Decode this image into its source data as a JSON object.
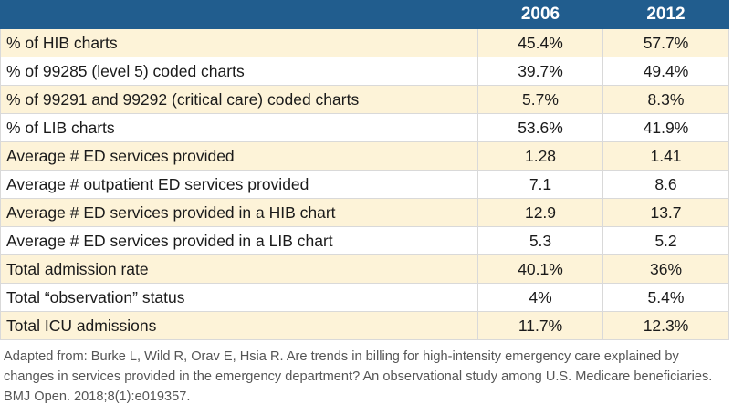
{
  "table": {
    "columns": [
      "",
      "2006",
      "2012"
    ],
    "rows": [
      {
        "label": "% of HIB charts",
        "v2006": "45.4%",
        "v2012": "57.7%"
      },
      {
        "label": "% of 99285 (level 5) coded charts",
        "v2006": "39.7%",
        "v2012": "49.4%"
      },
      {
        "label": "% of 99291 and 99292 (critical care) coded charts",
        "v2006": "5.7%",
        "v2012": "8.3%"
      },
      {
        "label": "% of LIB charts",
        "v2006": "53.6%",
        "v2012": "41.9%"
      },
      {
        "label": "Average # ED services provided",
        "v2006": "1.28",
        "v2012": "1.41"
      },
      {
        "label": "Average # outpatient ED services provided",
        "v2006": "7.1",
        "v2012": "8.6"
      },
      {
        "label": "Average # ED services provided in a HIB chart",
        "v2006": "12.9",
        "v2012": "13.7"
      },
      {
        "label": "Average # ED services provided in a LIB chart",
        "v2006": "5.3",
        "v2012": "5.2"
      },
      {
        "label": "Total admission rate",
        "v2006": "40.1%",
        "v2012": "36%"
      },
      {
        "label": "Total “observation” status",
        "v2006": "4%",
        "v2012": "5.4%"
      },
      {
        "label": "Total ICU admissions",
        "v2006": "11.7%",
        "v2012": "12.3%"
      }
    ]
  },
  "footnote": "Adapted from: Burke L, Wild R, Orav E, Hsia R. Are trends in billing for high-intensity emergency care explained by changes in services provided in the emergency department? An observational study among U.S. Medicare beneficiaries. BMJ Open. 2018;8(1):e019357.",
  "colors": {
    "header": "#215d8e",
    "shaded_row": "#fdf3d8"
  }
}
